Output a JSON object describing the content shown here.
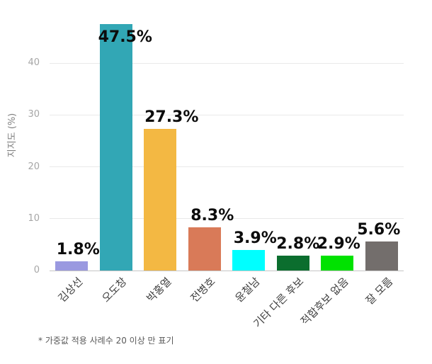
{
  "page": {
    "background": "#ffffff"
  },
  "chart_data": {
    "type": "bar",
    "title": "",
    "xlabel": "",
    "ylabel": "지지도 (%)",
    "ylim": [
      0,
      49
    ],
    "yticks": [
      0,
      10,
      20,
      30,
      40
    ],
    "grid": true,
    "legend": "none",
    "categories": [
      "김상선",
      "오도창",
      "박홍열",
      "전병호",
      "윤철남",
      "기타 다른 후보",
      "적합후보 없음",
      "잘 모름"
    ],
    "values": [
      1.8,
      47.5,
      27.3,
      8.3,
      3.9,
      2.8,
      2.9,
      5.6
    ],
    "value_labels": [
      "1.8%",
      "47.5%",
      "27.3%",
      "8.3%",
      "3.9%",
      "2.8%",
      "2.9%",
      "5.6%"
    ],
    "emphasized_label_index": 6,
    "bar_colors": [
      "#9a99e0",
      "#32a7b5",
      "#f3b843",
      "#d97a58",
      "#00ffff",
      "#0b6e2e",
      "#01e201",
      "#736e6c"
    ],
    "label_color": "#0c0c0c",
    "tick_color": "#a6a6a6",
    "axis_title_color": "#808080",
    "category_label_color": "#404040",
    "gridline_color": "#e9e9e9",
    "footnote": "* 가중값 적용 사례수 20 이상 만 표기",
    "footnote_color": "#595959"
  }
}
